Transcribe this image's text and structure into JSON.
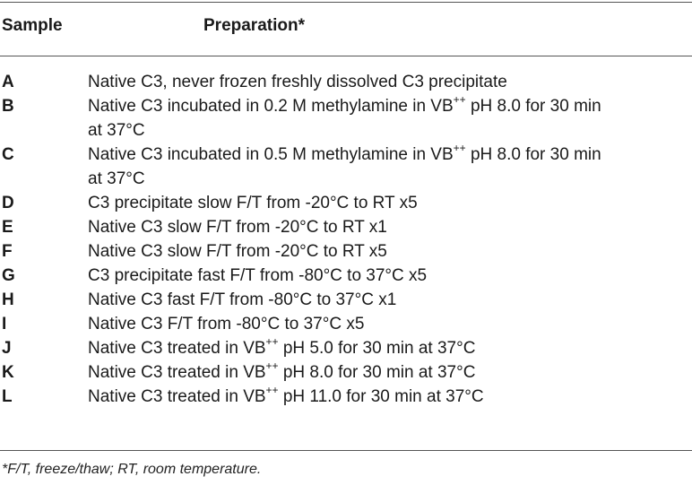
{
  "header": {
    "sample": "Sample",
    "preparation": "Preparation*"
  },
  "rows": [
    {
      "label": "A",
      "parts": [
        "Native C3, never frozen freshly dissolved C3 precipitate"
      ]
    },
    {
      "label": "B",
      "parts": [
        "Native C3 incubated in 0.2 M methylamine in VB",
        "++",
        " pH 8.0 for 30 min",
        "at 37°C"
      ]
    },
    {
      "label": "C",
      "parts": [
        "Native C3 incubated in 0.5 M methylamine in VB",
        "++",
        " pH 8.0 for 30 min",
        "at 37°C"
      ]
    },
    {
      "label": "D",
      "parts": [
        "C3 precipitate slow F/T from -20°C to RT x5"
      ]
    },
    {
      "label": "E",
      "parts": [
        "Native C3 slow F/T from -20°C to RT x1"
      ]
    },
    {
      "label": "F",
      "parts": [
        "Native C3 slow F/T from -20°C to RT x5"
      ]
    },
    {
      "label": "G",
      "parts": [
        "C3 precipitate fast F/T from -80°C to 37°C x5"
      ]
    },
    {
      "label": "H",
      "parts": [
        "Native C3 fast F/T from -80°C to 37°C x1"
      ]
    },
    {
      "label": "I",
      "parts": [
        "Native C3 F/T from -80°C to 37°C x5"
      ]
    },
    {
      "label": "J",
      "parts": [
        "Native C3 treated in VB",
        "++",
        " pH 5.0 for 30 min at 37°C"
      ]
    },
    {
      "label": "K",
      "parts": [
        "Native C3 treated in VB",
        "++",
        " pH 8.0 for 30 min at 37°C"
      ]
    },
    {
      "label": "L",
      "parts": [
        "Native C3 treated in VB",
        "++",
        " pH 11.0 for 30 min at 37°C"
      ]
    }
  ],
  "footnote": "*F/T, freeze/thaw; RT, room temperature."
}
